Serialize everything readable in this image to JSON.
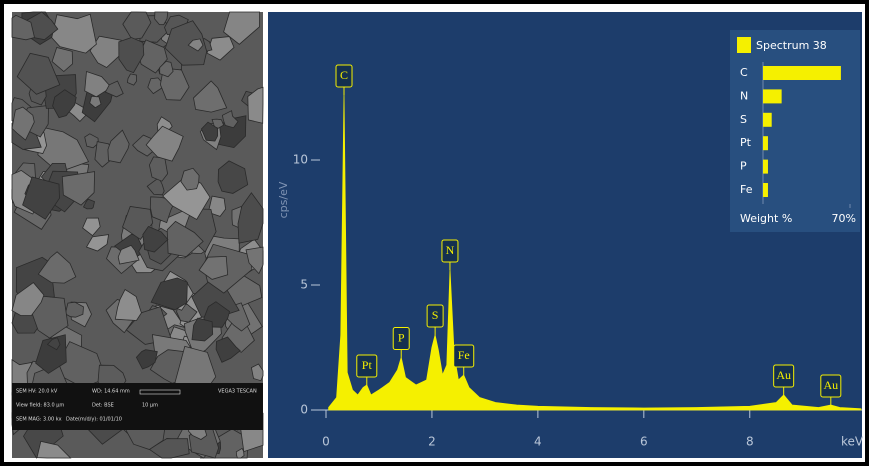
{
  "sem_image": {
    "info": [
      "SEM HV: 20.0 kV",
      "WD: 14.64 mm",
      "VEGA3 TESCAN",
      "View field: 83.0 μm",
      "Det: BSE",
      "10 μm",
      "SEM MAG: 3.00 kx",
      "Date(m/d/y): 01/01/10"
    ]
  },
  "chart_data": [
    {
      "type": "area",
      "ylabel": "cps/eV",
      "xlabel": "keV",
      "color": "#f5f000",
      "x": [
        0.05,
        0.2,
        0.28,
        0.34,
        0.4,
        0.5,
        0.6,
        0.7,
        0.77,
        0.85,
        1.0,
        1.2,
        1.35,
        1.42,
        1.5,
        1.7,
        1.9,
        2.0,
        2.06,
        2.12,
        2.2,
        2.28,
        2.34,
        2.42,
        2.5,
        2.6,
        2.7,
        2.9,
        3.2,
        3.6,
        4.0,
        5.0,
        6.0,
        7.0,
        8.0,
        8.5,
        8.64,
        8.8,
        9.3,
        9.53,
        9.7,
        10.1
      ],
      "values": [
        0.1,
        0.5,
        3,
        12.6,
        1.5,
        0.8,
        0.6,
        0.9,
        1.0,
        0.6,
        0.8,
        1.1,
        1.6,
        2.1,
        1.3,
        1.0,
        1.2,
        2.5,
        3.0,
        2.4,
        1.4,
        1.8,
        5.6,
        2.2,
        1.2,
        1.4,
        0.9,
        0.5,
        0.3,
        0.2,
        0.15,
        0.1,
        0.08,
        0.1,
        0.15,
        0.3,
        0.6,
        0.2,
        0.1,
        0.2,
        0.1,
        0.05
      ],
      "xlim": [
        0,
        10.1
      ],
      "ylim": [
        0,
        15
      ],
      "xticks": [
        0,
        2,
        4,
        6,
        8
      ],
      "yticks": [
        0,
        5,
        10
      ],
      "annotations": [
        {
          "text": "C",
          "x": 0.34,
          "y": 12.6
        },
        {
          "text": "Pt",
          "x": 0.77,
          "y": 1.0
        },
        {
          "text": "P",
          "x": 1.42,
          "y": 2.1
        },
        {
          "text": "S",
          "x": 2.06,
          "y": 3.0
        },
        {
          "text": "N",
          "x": 2.34,
          "y": 5.6
        },
        {
          "text": "Fe",
          "x": 2.6,
          "y": 1.4
        },
        {
          "text": "Au",
          "x": 8.64,
          "y": 0.6
        },
        {
          "text": "Au",
          "x": 9.53,
          "y": 0.2
        }
      ]
    },
    {
      "type": "hbar",
      "legend": "Spectrum 38",
      "color": "#f5f000",
      "categories": [
        "C",
        "N",
        "S",
        "Pt",
        "P",
        "Fe"
      ],
      "values": [
        62.7,
        15,
        7,
        4,
        4,
        4
      ],
      "xlabel": "Weight %",
      "xlim": [
        0,
        70
      ],
      "xticks": [
        {
          "value": 70,
          "label": "70%"
        }
      ]
    }
  ]
}
